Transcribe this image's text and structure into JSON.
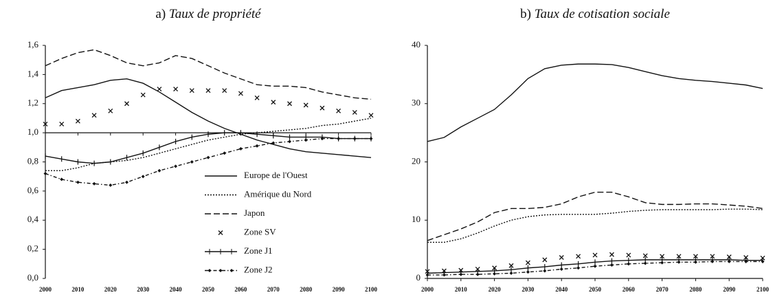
{
  "chart_data": [
    {
      "type": "line",
      "panel_label": "a)",
      "title": "Taux de propriété",
      "x": [
        2000,
        2005,
        2010,
        2015,
        2020,
        2025,
        2030,
        2035,
        2040,
        2045,
        2050,
        2055,
        2060,
        2065,
        2070,
        2075,
        2080,
        2085,
        2090,
        2095,
        2100
      ],
      "xlim": [
        2000,
        2100
      ],
      "xticks": [
        2000,
        2010,
        2020,
        2030,
        2040,
        2050,
        2060,
        2070,
        2080,
        2090,
        2100
      ],
      "ylim": [
        0,
        1.6
      ],
      "yticks": [
        {
          "value": 0,
          "label": "0,0"
        },
        {
          "value": 0.2,
          "label": "0,2"
        },
        {
          "value": 0.4,
          "label": "0,4"
        },
        {
          "value": 0.6,
          "label": "0,6"
        },
        {
          "value": 0.8,
          "label": "0,8"
        },
        {
          "value": 1,
          "label": "1,0"
        },
        {
          "value": 1.2,
          "label": "1,2"
        },
        {
          "value": 1.4,
          "label": "1,4"
        },
        {
          "value": 1.6,
          "label": "1,6"
        }
      ],
      "x_axis_crossing": 1,
      "legend": "lower right",
      "series": [
        {
          "name": "Europe de l'Ouest",
          "color": "#111111",
          "style": "solid",
          "marker": "none",
          "values": [
            1.24,
            1.29,
            1.31,
            1.33,
            1.36,
            1.37,
            1.34,
            1.28,
            1.21,
            1.14,
            1.08,
            1.03,
            0.99,
            0.95,
            0.92,
            0.89,
            0.87,
            0.86,
            0.85,
            0.84,
            0.83
          ]
        },
        {
          "name": "Amérique du Nord",
          "color": "#111111",
          "style": "dotted",
          "marker": "none",
          "values": [
            0.74,
            0.74,
            0.76,
            0.79,
            0.8,
            0.81,
            0.83,
            0.86,
            0.89,
            0.92,
            0.95,
            0.97,
            0.99,
            1.0,
            1.01,
            1.02,
            1.03,
            1.05,
            1.06,
            1.08,
            1.1
          ]
        },
        {
          "name": "Japon",
          "color": "#111111",
          "style": "dashed",
          "marker": "none",
          "values": [
            1.46,
            1.51,
            1.55,
            1.57,
            1.53,
            1.48,
            1.46,
            1.48,
            1.53,
            1.51,
            1.46,
            1.41,
            1.37,
            1.33,
            1.32,
            1.32,
            1.31,
            1.28,
            1.26,
            1.24,
            1.23
          ]
        },
        {
          "name": "Zone SV",
          "color": "#111111",
          "style": "none",
          "marker": "x",
          "values": [
            1.06,
            1.06,
            1.08,
            1.12,
            1.15,
            1.2,
            1.26,
            1.3,
            1.3,
            1.29,
            1.29,
            1.29,
            1.27,
            1.24,
            1.21,
            1.2,
            1.19,
            1.17,
            1.15,
            1.14,
            1.12
          ]
        },
        {
          "name": "Zone J1",
          "color": "#111111",
          "style": "solid",
          "marker": "plus",
          "values": [
            0.84,
            0.82,
            0.8,
            0.79,
            0.8,
            0.83,
            0.86,
            0.9,
            0.94,
            0.97,
            0.99,
            1.0,
            1.0,
            0.99,
            0.98,
            0.97,
            0.97,
            0.97,
            0.96,
            0.96,
            0.96
          ]
        },
        {
          "name": "Zone J2",
          "color": "#111111",
          "style": "dashdot",
          "marker": "diamond",
          "values": [
            0.72,
            0.68,
            0.66,
            0.65,
            0.64,
            0.66,
            0.7,
            0.74,
            0.77,
            0.8,
            0.83,
            0.86,
            0.89,
            0.91,
            0.93,
            0.94,
            0.95,
            0.96,
            0.96,
            0.96,
            0.96
          ]
        }
      ]
    },
    {
      "type": "line",
      "panel_label": "b)",
      "title": "Taux de cotisation sociale",
      "x": [
        2000,
        2005,
        2010,
        2015,
        2020,
        2025,
        2030,
        2035,
        2040,
        2045,
        2050,
        2055,
        2060,
        2065,
        2070,
        2075,
        2080,
        2085,
        2090,
        2095,
        2100
      ],
      "xlim": [
        2000,
        2100
      ],
      "xticks": [
        2000,
        2010,
        2020,
        2030,
        2040,
        2050,
        2060,
        2070,
        2080,
        2090,
        2100
      ],
      "ylim": [
        0,
        40
      ],
      "yticks": [
        0,
        10,
        20,
        30,
        40
      ],
      "series": [
        {
          "color": "#111111",
          "style": "solid",
          "marker": "none",
          "values": [
            23.5,
            24.2,
            26,
            27.5,
            29,
            31.5,
            34.3,
            36,
            36.6,
            36.8,
            36.8,
            36.7,
            36.2,
            35.5,
            34.8,
            34.3,
            34,
            33.8,
            33.5,
            33.2,
            32.6
          ]
        },
        {
          "color": "#111111",
          "style": "dotted",
          "marker": "none",
          "values": [
            6.2,
            6.2,
            6.8,
            7.8,
            9,
            10,
            10.6,
            10.9,
            11,
            11,
            11,
            11.2,
            11.5,
            11.7,
            11.8,
            11.8,
            11.8,
            11.8,
            11.9,
            11.9,
            11.8
          ]
        },
        {
          "color": "#111111",
          "style": "dashed",
          "marker": "none",
          "values": [
            6.5,
            7.5,
            8.5,
            9.7,
            11.3,
            12,
            12,
            12.2,
            12.8,
            14,
            14.8,
            14.8,
            14,
            13,
            12.7,
            12.7,
            12.8,
            12.8,
            12.6,
            12.4,
            12
          ]
        },
        {
          "color": "#111111",
          "style": "none",
          "marker": "x",
          "values": [
            1.2,
            1.3,
            1.4,
            1.6,
            1.8,
            2.2,
            2.7,
            3.2,
            3.6,
            3.8,
            4,
            4.1,
            4,
            3.9,
            3.8,
            3.8,
            3.8,
            3.8,
            3.7,
            3.6,
            3.5
          ]
        },
        {
          "color": "#111111",
          "style": "solid",
          "marker": "plus",
          "values": [
            0.9,
            1,
            1.1,
            1.2,
            1.3,
            1.5,
            1.8,
            2,
            2.3,
            2.5,
            2.8,
            3,
            3.1,
            3.2,
            3.2,
            3.2,
            3.2,
            3.2,
            3.2,
            3.1,
            3.1
          ]
        },
        {
          "color": "#111111",
          "style": "dashdot",
          "marker": "diamond",
          "values": [
            0.6,
            0.6,
            0.7,
            0.7,
            0.8,
            0.9,
            1.1,
            1.3,
            1.6,
            1.8,
            2.1,
            2.3,
            2.5,
            2.6,
            2.7,
            2.8,
            2.8,
            2.9,
            2.9,
            2.9,
            2.9
          ]
        }
      ]
    }
  ]
}
